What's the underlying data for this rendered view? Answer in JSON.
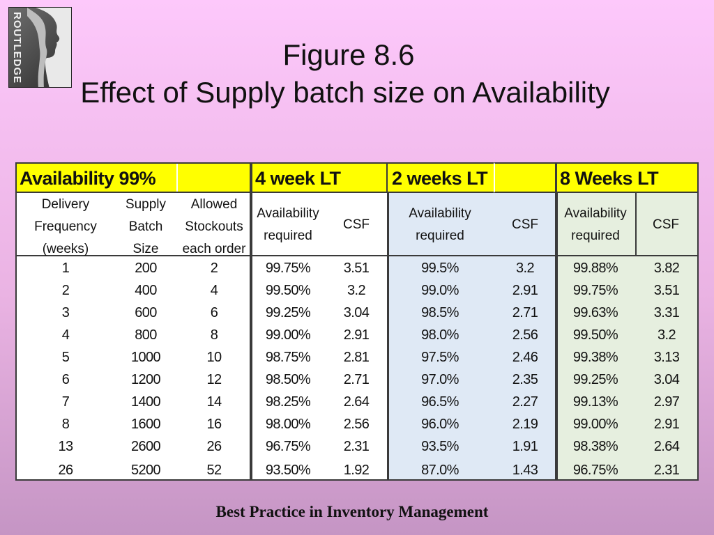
{
  "logo": {
    "text": "ROUTLEDGE"
  },
  "figure_number": "Figure 8.6",
  "figure_title": "Effect of Supply batch size on Availability",
  "table": {
    "availability_label": "Availability 99%",
    "groups": [
      {
        "label": "4 week LT",
        "col1": "Availability required",
        "col2": "CSF"
      },
      {
        "label": "2 weeks LT",
        "col1": "Availability required",
        "col2": "CSF"
      },
      {
        "label": "8 Weeks LT",
        "col1": "Availability required",
        "col2": "CSF"
      }
    ],
    "left_headers": [
      [
        "Delivery",
        "Frequency",
        "(weeks)"
      ],
      [
        "Supply",
        "Batch",
        "Size"
      ],
      [
        "Allowed",
        "Stockouts",
        "each order"
      ]
    ],
    "rows": [
      [
        "1",
        "200",
        "2",
        "99.75%",
        "3.51",
        "99.5%",
        "3.2",
        "99.88%",
        "3.82"
      ],
      [
        "2",
        "400",
        "4",
        "99.50%",
        "3.2",
        "99.0%",
        "2.91",
        "99.75%",
        "3.51"
      ],
      [
        "3",
        "600",
        "6",
        "99.25%",
        "3.04",
        "98.5%",
        "2.71",
        "99.63%",
        "3.31"
      ],
      [
        "4",
        "800",
        "8",
        "99.00%",
        "2.91",
        "98.0%",
        "2.56",
        "99.50%",
        "3.2"
      ],
      [
        "5",
        "1000",
        "10",
        "98.75%",
        "2.81",
        "97.5%",
        "2.46",
        "99.38%",
        "3.13"
      ],
      [
        "6",
        "1200",
        "12",
        "98.50%",
        "2.71",
        "97.0%",
        "2.35",
        "99.25%",
        "3.04"
      ],
      [
        "7",
        "1400",
        "14",
        "98.25%",
        "2.64",
        "96.5%",
        "2.27",
        "99.13%",
        "2.97"
      ],
      [
        "8",
        "1600",
        "16",
        "98.00%",
        "2.56",
        "96.0%",
        "2.19",
        "99.00%",
        "2.91"
      ],
      [
        "13",
        "2600",
        "26",
        "96.75%",
        "2.31",
        "93.5%",
        "1.91",
        "98.38%",
        "2.64"
      ],
      [
        "26",
        "5200",
        "52",
        "93.50%",
        "1.92",
        "87.0%",
        "1.43",
        "96.75%",
        "2.31"
      ]
    ]
  },
  "footer": "Best Practice in Inventory Management",
  "colors": {
    "background_top": "#fdc8fb",
    "background_bottom": "#c595c4",
    "header_yellow": "#ffff00",
    "two_week_fill": "#dfe9f5",
    "eight_week_fill": "#e6efdf"
  }
}
